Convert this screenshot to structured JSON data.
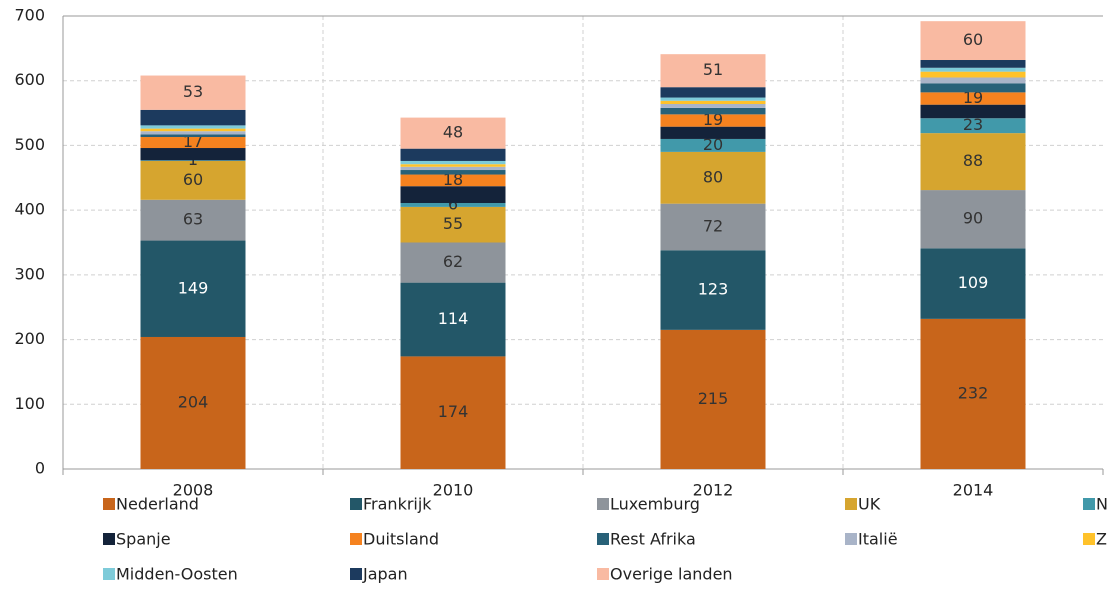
{
  "chart_data": {
    "type": "stacked_bar",
    "categories": [
      "2008",
      "2010",
      "2012",
      "2014"
    ],
    "ylim": [
      0,
      700
    ],
    "yticks": [
      0,
      100,
      200,
      300,
      400,
      500,
      600,
      700
    ],
    "grid": true,
    "series": [
      {
        "name": "Nederland",
        "color": "#c8651b",
        "values": [
          204,
          174,
          215,
          232
        ],
        "show_labels": true
      },
      {
        "name": "Frankrijk",
        "color": "#235768",
        "values": [
          149,
          114,
          123,
          109
        ],
        "show_labels": true
      },
      {
        "name": "Luxemburg",
        "color": "#8e949b",
        "values": [
          63,
          62,
          72,
          90
        ],
        "show_labels": true
      },
      {
        "name": "UK",
        "color": "#d6a52f",
        "values": [
          60,
          55,
          80,
          88
        ],
        "show_labels": true
      },
      {
        "name": "Nigeria",
        "color": "#4199aa",
        "values": [
          1,
          6,
          20,
          23
        ],
        "show_labels": true
      },
      {
        "name": "Spanje",
        "color": "#14233a",
        "values": [
          19,
          26,
          19,
          21
        ]
      },
      {
        "name": "Duitsland",
        "color": "#f5821f",
        "values": [
          17,
          18,
          19,
          19
        ],
        "show_labels": true
      },
      {
        "name": "Rest Afrika",
        "color": "#286178",
        "values": [
          4,
          7,
          10,
          14
        ]
      },
      {
        "name": "Italië",
        "color": "#a9b4c8",
        "values": [
          5,
          5,
          6,
          9
        ]
      },
      {
        "name": "Zweden",
        "color": "#ffc22a",
        "values": [
          4,
          4,
          5,
          9
        ]
      },
      {
        "name": "Midden-Oosten",
        "color": "#7ecbd9",
        "values": [
          5,
          5,
          5,
          6
        ]
      },
      {
        "name": "Japan",
        "color": "#1c3a5e",
        "values": [
          24,
          19,
          16,
          12
        ]
      },
      {
        "name": "Overige landen",
        "color": "#f9baa2",
        "values": [
          53,
          48,
          51,
          60
        ],
        "show_labels": true
      }
    ]
  }
}
